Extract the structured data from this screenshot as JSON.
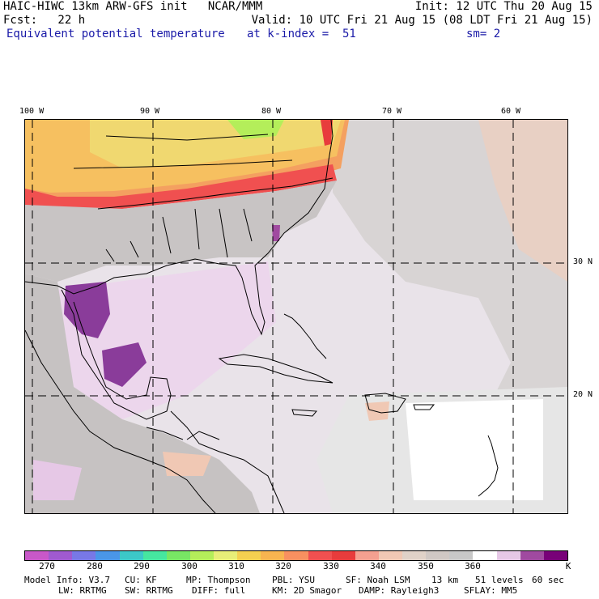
{
  "header": {
    "model_line": "HAIC-HIWC 13km ARW-GFS init   NCAR/MMM",
    "init": "Init: 12 UTC Thu 20 Aug 15",
    "forecast": "Fcst:   22 h",
    "valid": "Valid: 10 UTC Fri 21 Aug 15 (08 LDT Fri 21 Aug 15)",
    "field": "Equivalent potential temperature",
    "level": "at k-index =  51",
    "smoothing": "sm= 2"
  },
  "map": {
    "longitude_labels": [
      "100 W",
      "90 W",
      "80 W",
      "70 W",
      "60 W"
    ],
    "latitude_labels": [
      "30 N",
      "20 N"
    ]
  },
  "colorbar": {
    "colors": [
      "#c858c8",
      "#a05ad0",
      "#7878e6",
      "#4a96e8",
      "#3cc8c8",
      "#46e6a0",
      "#78e664",
      "#b4ee5a",
      "#e8ee78",
      "#f4d050",
      "#f8b450",
      "#f89060",
      "#f05050",
      "#e83c3c",
      "#f4a090",
      "#f0c8b4",
      "#e0d2c8",
      "#d0c8c4",
      "#c8c8c8",
      "#ffffff",
      "#e6c8e6",
      "#a04aa0",
      "#780078"
    ],
    "tick_labels": [
      "270",
      "280",
      "290",
      "300",
      "310",
      "320",
      "330",
      "340",
      "350",
      "360",
      "K"
    ]
  },
  "model_info": {
    "line1": [
      "Model Info: V3.7",
      "CU: KF",
      "MP: Thompson",
      "PBL: YSU",
      "SF: Noah LSM",
      "13 km",
      "51 levels",
      "60 sec"
    ],
    "line2": [
      "LW: RRTMG",
      "SW: RRTMG",
      "DIFF: full",
      "KM: 2D Smagor",
      "DAMP: Rayleigh3",
      "SFLAY: MM5"
    ]
  }
}
